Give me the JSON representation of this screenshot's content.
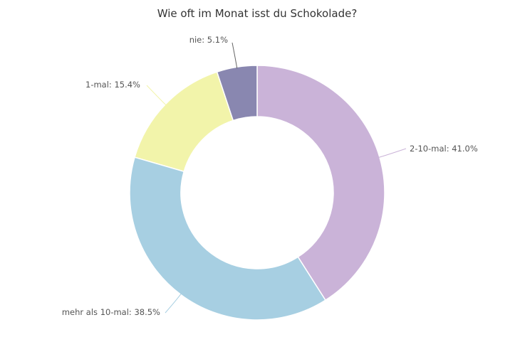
{
  "chart_data": {
    "type": "pie",
    "donut": true,
    "title": "Wie oft im Monat isst du Schokolade?",
    "slices": [
      {
        "label": "2-10-mal",
        "value": 41.0,
        "display": "2-10-mal: 41.0%",
        "color": "#cab3d8"
      },
      {
        "label": "mehr als 10-mal",
        "value": 38.5,
        "display": "mehr als 10-mal: 38.5%",
        "color": "#a7cfe2"
      },
      {
        "label": "1-mal",
        "value": 15.4,
        "display": "1-mal: 15.4%",
        "color": "#f2f4aa"
      },
      {
        "label": "nie",
        "value": 5.1,
        "display": "nie: 5.1%",
        "color": "#8987b0"
      }
    ]
  }
}
